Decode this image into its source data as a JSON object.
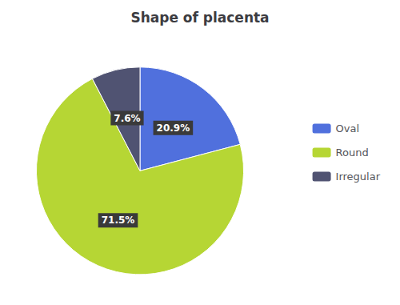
{
  "chart_data": {
    "type": "pie",
    "title": "Shape of placenta",
    "categories": [
      "Oval",
      "Round",
      "Irregular"
    ],
    "values": [
      20.9,
      71.5,
      7.6
    ],
    "value_labels": [
      "20.9%",
      "71.5%",
      "7.6%"
    ],
    "data_labels": true,
    "legend": "right"
  }
}
